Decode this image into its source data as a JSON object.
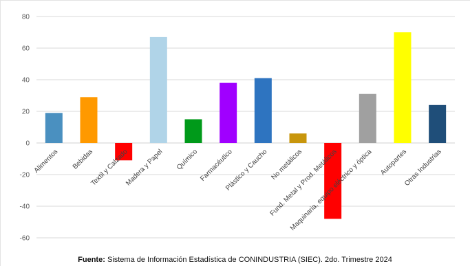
{
  "chart_data": {
    "type": "bar",
    "title": "",
    "xlabel": "",
    "ylabel": "",
    "ylim": [
      -60,
      80
    ],
    "yticks": [
      -60,
      -40,
      -20,
      0,
      20,
      40,
      60,
      80
    ],
    "grid": true,
    "legend": "none",
    "categories": [
      "Alimentos",
      "Bebidas",
      "Textil y Calzado",
      "Madera y Papel",
      "Químico",
      "Farmacéutico",
      "Plástico y Caucho",
      "No metálicos",
      "Fund. Metal y Prod. Metálicos",
      "Maquinaria, equipo eléctrico y óptica",
      "Autopartes",
      "Otras Industrias"
    ],
    "values": [
      19,
      29,
      -11,
      67,
      15,
      38,
      41,
      6,
      -48,
      31,
      70,
      24
    ],
    "colors": [
      "#4a90c0",
      "#ff9900",
      "#ff0000",
      "#b0d4e8",
      "#009a1a",
      "#a000ff",
      "#2e74c0",
      "#c8960c",
      "#ff0000",
      "#a0a0a0",
      "#ffff00",
      "#1f4e79"
    ]
  },
  "source": {
    "label": "Fuente:",
    "text": " Sistema de Información Estadística de CONINDUSTRIA (SIEC). 2do. Trimestre 2024"
  }
}
